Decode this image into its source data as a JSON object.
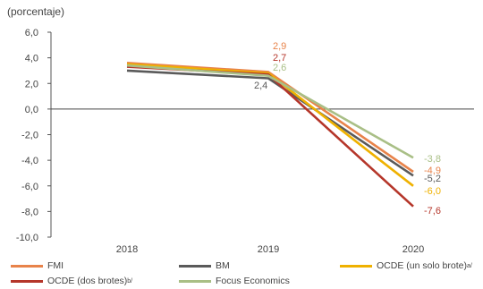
{
  "chart_data": {
    "type": "line",
    "ylabel": "(porcentaje)",
    "categories": [
      "2018",
      "2019",
      "2020"
    ],
    "ylim": [
      -10,
      6
    ],
    "yticks": [
      "6,0",
      "4,0",
      "2,0",
      "0,0",
      "-2,0",
      "-4,0",
      "-6,0",
      "-8,0",
      "-10,0"
    ],
    "series": [
      {
        "name": "FMI",
        "legend_suffix": "",
        "color": "#e8834a",
        "values": [
          3.6,
          2.9,
          -4.9
        ]
      },
      {
        "name": "BM",
        "legend_suffix": "",
        "color": "#5a5a5a",
        "values": [
          3.0,
          2.4,
          -5.2
        ]
      },
      {
        "name": "OCDE (un solo brote)",
        "legend_suffix": "a/",
        "color": "#efb100",
        "values": [
          3.5,
          2.8,
          -6.0
        ]
      },
      {
        "name": "OCDE (dos brotes)",
        "legend_suffix": "b/",
        "color": "#b5362a",
        "values": [
          3.3,
          2.7,
          -7.6
        ]
      },
      {
        "name": "Focus Economics",
        "legend_suffix": "",
        "color": "#a9bf86",
        "values": [
          3.4,
          2.6,
          -3.8
        ]
      }
    ],
    "annotations_2019": [
      {
        "text": "2,9",
        "color": "#e8834a"
      },
      {
        "text": "2,7",
        "color": "#b5362a"
      },
      {
        "text": "2,6",
        "color": "#a9bf86"
      },
      {
        "text": "2,4",
        "color": "#5a5a5a"
      }
    ],
    "annotations_2020": [
      {
        "text": "-3,8",
        "color": "#a9bf86"
      },
      {
        "text": "-4,9",
        "color": "#e8834a"
      },
      {
        "text": "-5,2",
        "color": "#5a5a5a"
      },
      {
        "text": "-6,0",
        "color": "#efb100"
      },
      {
        "text": "-7,6",
        "color": "#b5362a"
      }
    ]
  }
}
